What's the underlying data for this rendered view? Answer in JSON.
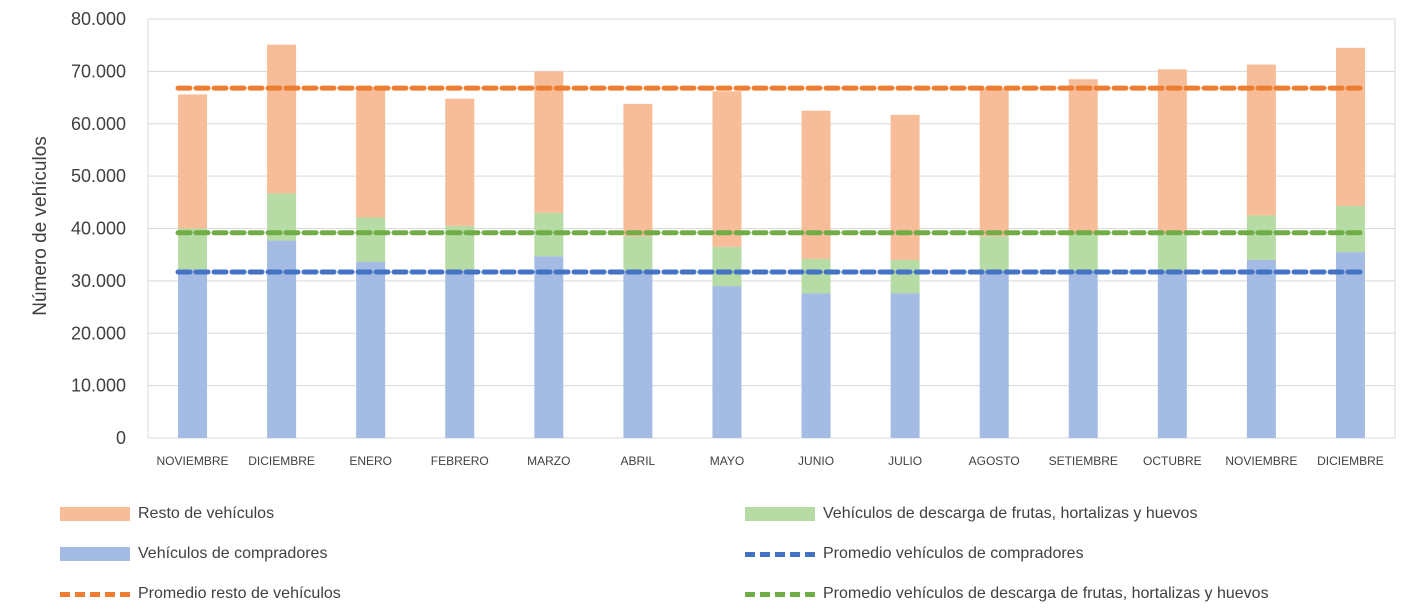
{
  "chart_data": {
    "type": "bar",
    "stacked": true,
    "ylabel": "Número de vehículos",
    "ylim": [
      0,
      80000
    ],
    "yticks": [
      "0",
      "10.000",
      "20.000",
      "30.000",
      "40.000",
      "50.000",
      "60.000",
      "70.000",
      "80.000"
    ],
    "yticks_values": [
      0,
      10000,
      20000,
      30000,
      40000,
      50000,
      60000,
      70000,
      80000
    ],
    "grid": true,
    "legend_position": "bottom",
    "categories": [
      "NOVIEMBRE",
      "DICIEMBRE",
      "ENERO",
      "FEBRERO",
      "MARZO",
      "ABRIL",
      "MAYO",
      "JUNIO",
      "JULIO",
      "AGOSTO",
      "SETIEMBRE",
      "OCTUBRE",
      "NOVIEMBRE",
      "DICIEMBRE"
    ],
    "series": [
      {
        "name": "Vehículos de compradores",
        "kind": "bar",
        "color": "#a4bbe3",
        "values": [
          32200,
          37700,
          33600,
          32000,
          34700,
          32000,
          29000,
          27600,
          27600,
          32000,
          32000,
          32000,
          34000,
          35500
        ]
      },
      {
        "name": "Vehículos de descarga de frutas, hortalizas y huevos",
        "kind": "bar",
        "color": "#b7dba5",
        "values": [
          7800,
          9000,
          8500,
          8500,
          8300,
          6500,
          7500,
          6600,
          6400,
          6500,
          7000,
          7000,
          8500,
          8800
        ]
      },
      {
        "name": "Resto de vehículos",
        "kind": "bar",
        "color": "#f6bd98",
        "values": [
          25600,
          28400,
          24900,
          24300,
          27000,
          25300,
          29700,
          28300,
          27700,
          28200,
          29500,
          31400,
          28800,
          30200
        ]
      },
      {
        "name": "Promedio vehículos de compradores",
        "kind": "line",
        "color": "#4472c4",
        "value": 31700
      },
      {
        "name": "Promedio resto de vehículos",
        "kind": "line",
        "color": "#ed7d31",
        "value": 66800
      },
      {
        "name": "Promedio vehículos de descarga de frutas, hortalizas y huevos",
        "kind": "line",
        "color": "#70ad47",
        "value": 39200
      }
    ]
  },
  "legend": {
    "items": [
      {
        "label": "Resto de vehículos",
        "style": "box",
        "color": "#f6bd98"
      },
      {
        "label": "Vehículos de descarga de frutas, hortalizas y huevos",
        "style": "box",
        "color": "#b7dba5"
      },
      {
        "label": "Vehículos de compradores",
        "style": "box",
        "color": "#a4bbe3"
      },
      {
        "label": "Promedio vehículos de compradores",
        "style": "dash",
        "color": "#4472c4"
      },
      {
        "label": "Promedio resto de vehículos",
        "style": "dash",
        "color": "#ed7d31"
      },
      {
        "label": "Promedio vehículos de descarga de frutas, hortalizas y huevos",
        "style": "dash",
        "color": "#70ad47"
      }
    ]
  }
}
